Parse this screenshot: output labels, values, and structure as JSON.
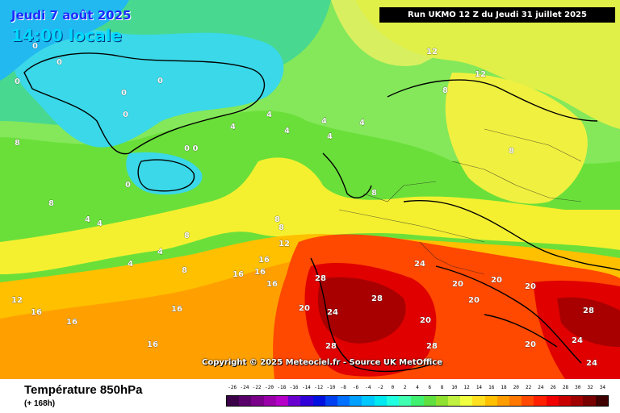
{
  "header": {
    "date": "Jeudi 7 août 2025",
    "time": "14:00 locale",
    "run": "Run UKMO 12 Z du Jeudi 31 juillet 2025"
  },
  "copyright": "Copyright © 2025 Meteociel.fr - Source UK MetOffice",
  "footer": {
    "title": "Température 850hPa",
    "subtitle": "(+ 168h)"
  },
  "scale": {
    "values": [
      "-26",
      "-24",
      "-22",
      "-20",
      "-18",
      "-16",
      "-14",
      "-12",
      "-10",
      "-8",
      "-6",
      "-4",
      "-2",
      "0",
      "2",
      "4",
      "6",
      "8",
      "10",
      "12",
      "14",
      "16",
      "18",
      "20",
      "22",
      "24",
      "26",
      "28",
      "30",
      "32",
      "34"
    ],
    "colors": [
      "#3a0048",
      "#5a006a",
      "#7a008a",
      "#9a00aa",
      "#b400c8",
      "#6a00d0",
      "#3000d8",
      "#0010e0",
      "#0040f0",
      "#0070ff",
      "#00a0ff",
      "#00c8ff",
      "#00e8f0",
      "#20ffe0",
      "#40ffb0",
      "#40f070",
      "#60e040",
      "#90e030",
      "#c0f040",
      "#f0ff40",
      "#ffe020",
      "#ffc000",
      "#ff9c00",
      "#ff7800",
      "#ff4800",
      "#ff2000",
      "#f00000",
      "#c80000",
      "#a00000",
      "#780000",
      "#400000"
    ]
  },
  "map_labels": [
    {
      "t": "0"
    },
    {
      "t": "0"
    },
    {
      "t": "0"
    },
    {
      "t": "0"
    },
    {
      "t": "0 0"
    },
    {
      "t": "0"
    },
    {
      "t": "0"
    },
    {
      "t": "0"
    },
    {
      "t": "4"
    },
    {
      "t": "4"
    },
    {
      "t": "4"
    },
    {
      "t": "4"
    },
    {
      "t": "4"
    },
    {
      "t": "4"
    },
    {
      "t": "4"
    },
    {
      "t": "4"
    },
    {
      "t": "4"
    },
    {
      "t": "4"
    },
    {
      "t": "8"
    },
    {
      "t": "8"
    },
    {
      "t": "8"
    },
    {
      "t": "8"
    },
    {
      "t": "8"
    },
    {
      "t": "8"
    },
    {
      "t": "8"
    },
    {
      "t": "8"
    },
    {
      "t": "8"
    },
    {
      "t": "12"
    },
    {
      "t": "12"
    },
    {
      "t": "12"
    },
    {
      "t": "12"
    },
    {
      "t": "16"
    },
    {
      "t": "16"
    },
    {
      "t": "16"
    },
    {
      "t": "16"
    },
    {
      "t": "16"
    },
    {
      "t": "16"
    },
    {
      "t": "16"
    },
    {
      "t": "16"
    },
    {
      "t": "20"
    },
    {
      "t": "20"
    },
    {
      "t": "20"
    },
    {
      "t": "20"
    },
    {
      "t": "20"
    },
    {
      "t": "20"
    },
    {
      "t": "20"
    },
    {
      "t": "24"
    },
    {
      "t": "24"
    },
    {
      "t": "24"
    },
    {
      "t": "24"
    },
    {
      "t": "28"
    },
    {
      "t": "28"
    },
    {
      "t": "28"
    },
    {
      "t": "28"
    },
    {
      "t": "28"
    }
  ]
}
